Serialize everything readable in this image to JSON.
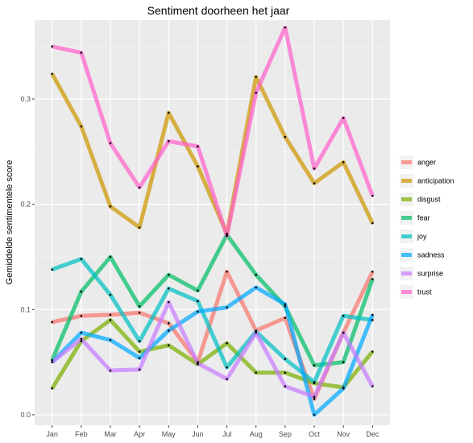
{
  "chart_data": {
    "type": "line",
    "title": "Sentiment doorheen het jaar",
    "xlabel": "",
    "ylabel": "Gemiddelde sentimentele score",
    "categories": [
      "Jan",
      "Feb",
      "Mar",
      "Apr",
      "May",
      "Jun",
      "Jul",
      "Aug",
      "Sep",
      "Oct",
      "Nov",
      "Dec"
    ],
    "ylim": [
      -0.01,
      0.375
    ],
    "yticks": [
      0.0,
      0.1,
      0.2,
      0.3
    ],
    "ytick_labels": [
      "0.0",
      "0.1",
      "0.2",
      "0.3"
    ],
    "grid": true,
    "legend_position": "right",
    "series": [
      {
        "name": "anger",
        "color": "#F8766D",
        "values": [
          0.088,
          0.094,
          0.095,
          0.097,
          0.087,
          0.05,
          0.136,
          0.08,
          0.092,
          0.015,
          0.078,
          0.136
        ]
      },
      {
        "name": "anticipation",
        "color": "#CD9600",
        "values": [
          0.324,
          0.274,
          0.198,
          0.178,
          0.287,
          0.236,
          0.172,
          0.321,
          0.264,
          0.22,
          0.24,
          0.182
        ]
      },
      {
        "name": "disgust",
        "color": "#7CAE00",
        "values": [
          0.025,
          0.07,
          0.09,
          0.06,
          0.066,
          0.048,
          0.068,
          0.04,
          0.04,
          0.03,
          0.026,
          0.06
        ]
      },
      {
        "name": "fear",
        "color": "#00BE67",
        "values": [
          0.052,
          0.117,
          0.15,
          0.103,
          0.133,
          0.118,
          0.171,
          0.133,
          0.103,
          0.047,
          0.05,
          0.129
        ]
      },
      {
        "name": "joy",
        "color": "#00BFC4",
        "values": [
          0.138,
          0.148,
          0.114,
          0.07,
          0.12,
          0.108,
          0.045,
          0.079,
          0.053,
          0.031,
          0.094,
          0.09
        ]
      },
      {
        "name": "sadness",
        "color": "#00A9FF",
        "values": [
          0.05,
          0.078,
          0.071,
          0.054,
          0.08,
          0.098,
          0.102,
          0.121,
          0.105,
          0.0,
          0.025,
          0.095
        ]
      },
      {
        "name": "surprise",
        "color": "#C77CFF",
        "values": [
          0.05,
          0.072,
          0.042,
          0.043,
          0.107,
          0.049,
          0.034,
          0.078,
          0.027,
          0.017,
          0.078,
          0.027
        ]
      },
      {
        "name": "trust",
        "color": "#FF61CC",
        "values": [
          0.35,
          0.344,
          0.258,
          0.216,
          0.26,
          0.255,
          0.17,
          0.306,
          0.368,
          0.234,
          0.282,
          0.208
        ]
      }
    ]
  }
}
